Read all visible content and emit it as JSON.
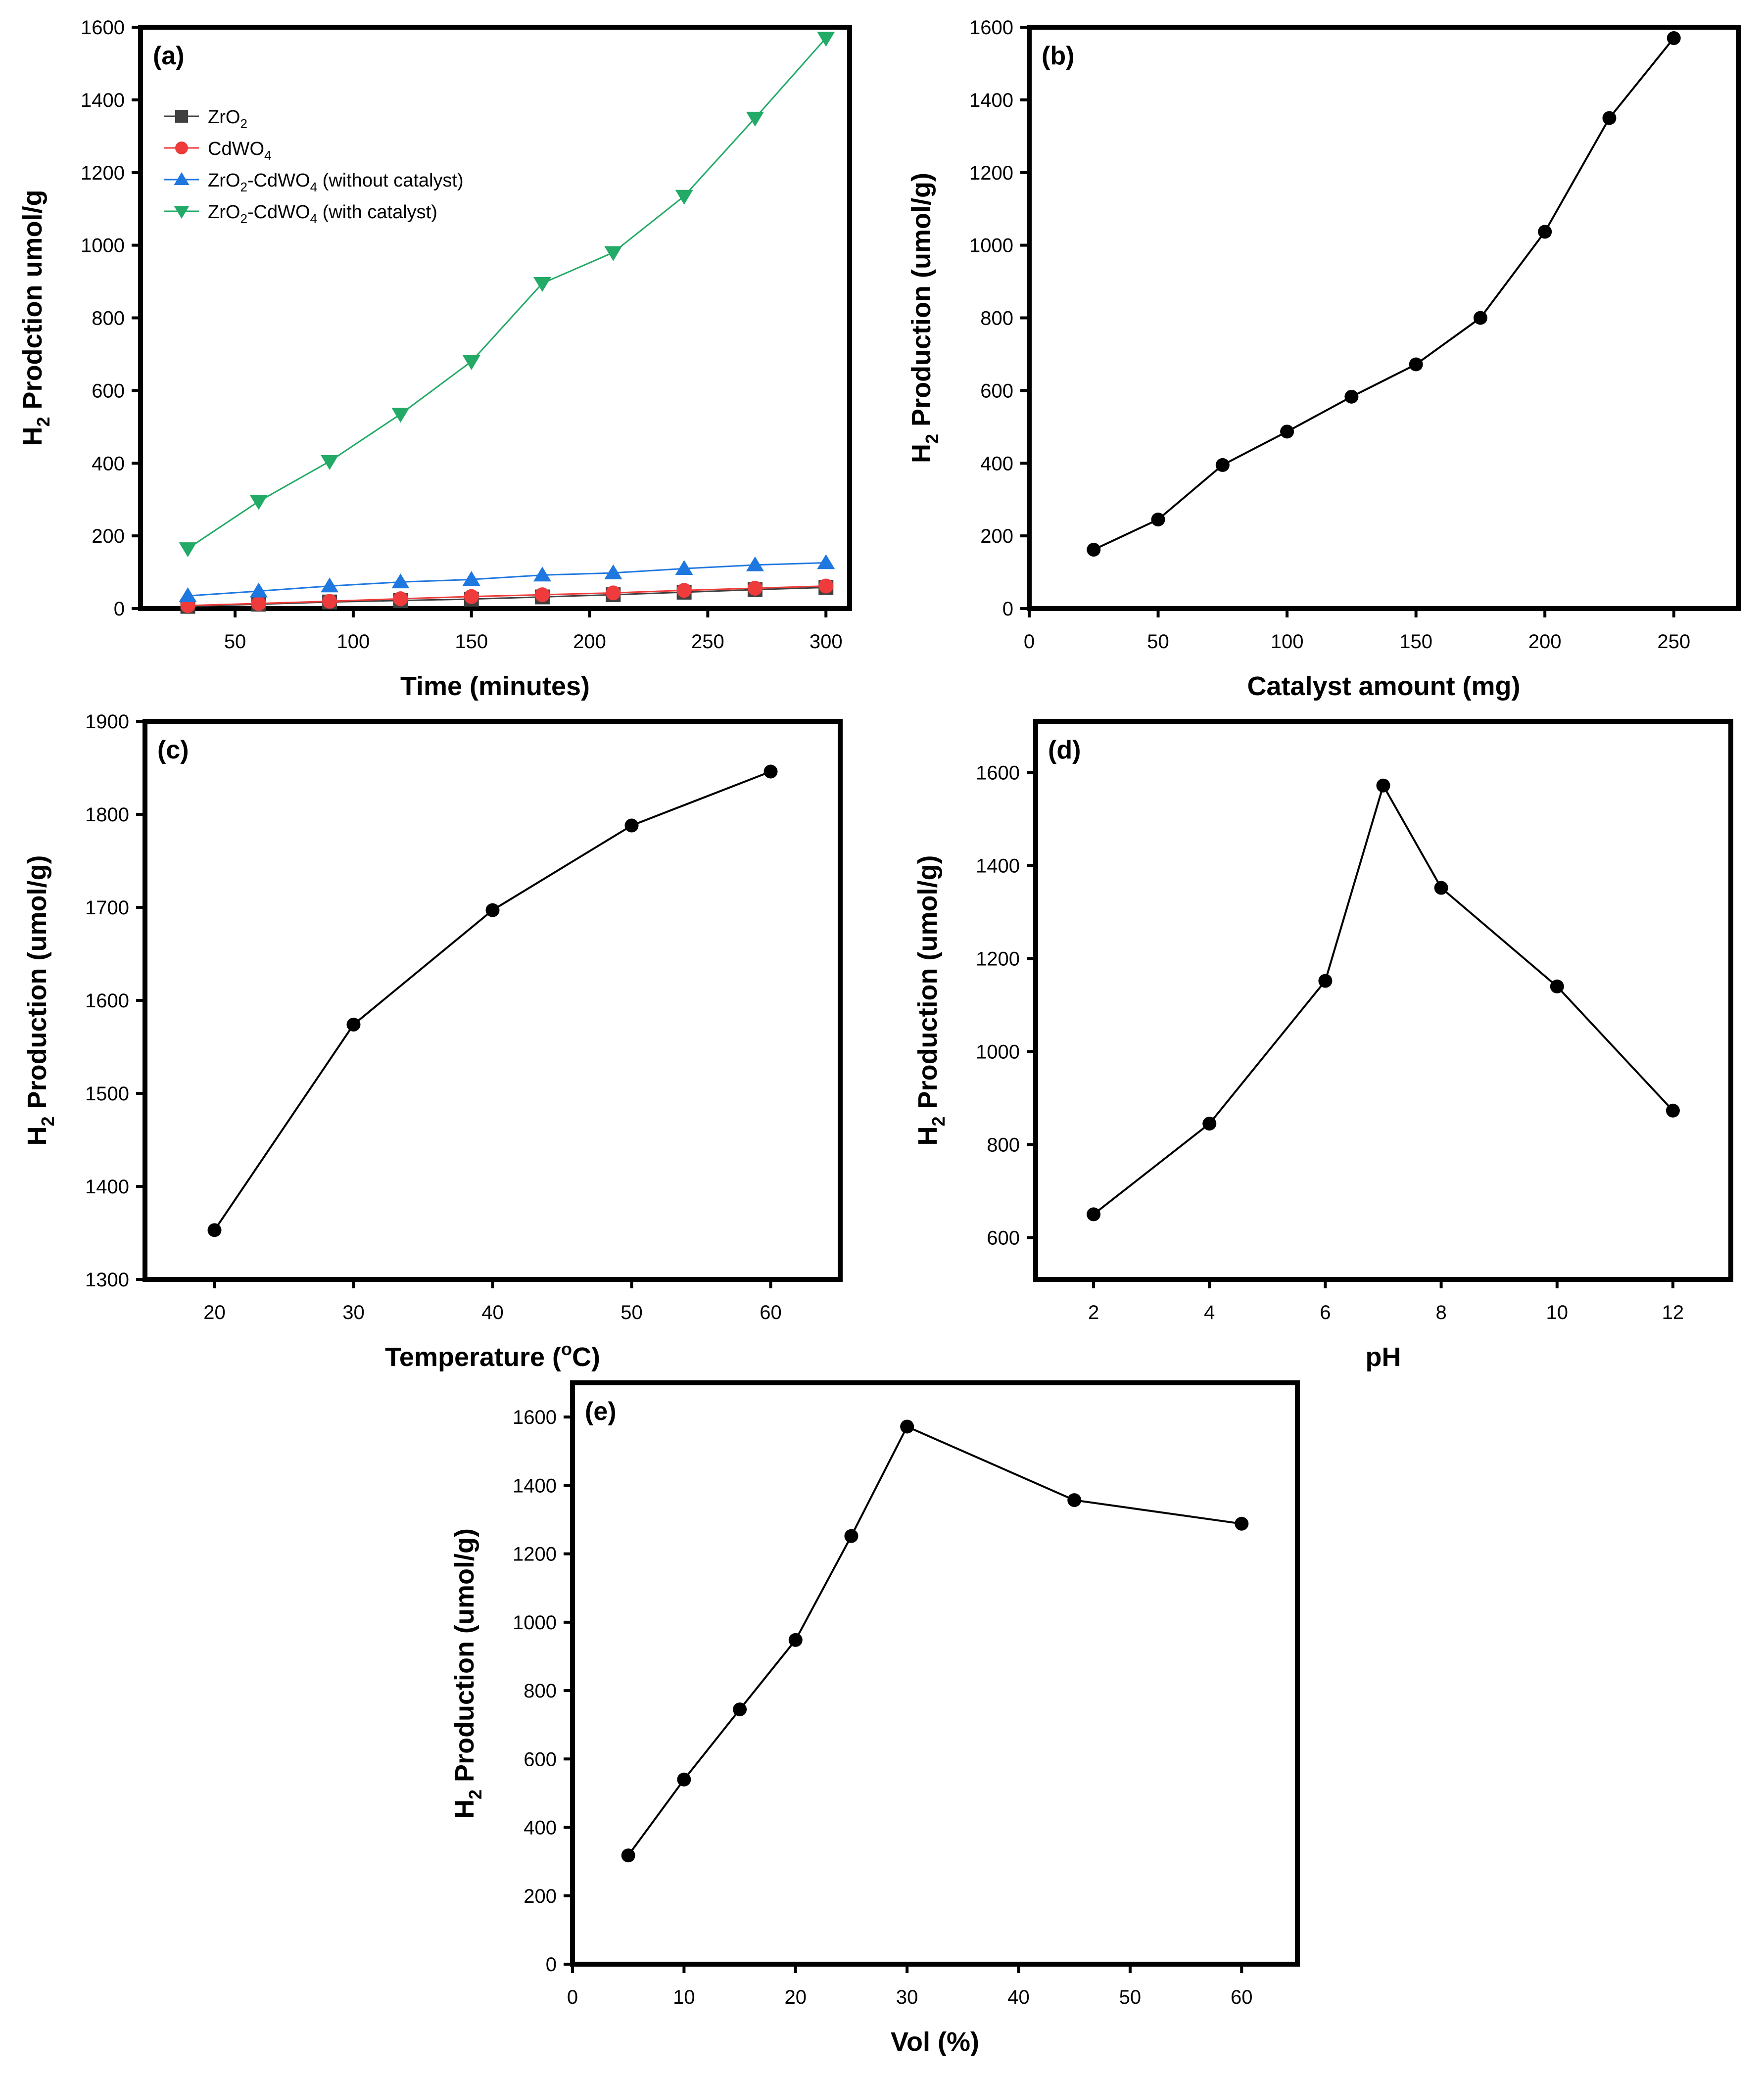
{
  "figure": {
    "background": "#ffffff"
  },
  "chart_data": [
    {
      "panel": "a",
      "label": "(a)",
      "type": "line",
      "xlabel": "Time (minutes)",
      "ylabel": "H₂ Prodction umol/g",
      "ylabel_main": "H",
      "ylabel_sub": "2",
      "ylabel_rest": " Prodction umol/g",
      "xlim": [
        10,
        310
      ],
      "ylim": [
        0,
        1600
      ],
      "xticks": [
        50,
        100,
        150,
        200,
        250,
        300
      ],
      "yticks": [
        0,
        200,
        400,
        600,
        800,
        1000,
        1200,
        1400,
        1600
      ],
      "grid": false,
      "legend": "top-left",
      "series": [
        {
          "name": "ZrO₂",
          "legend_parts": [
            [
              "ZrO",
              ""
            ],
            [
              "2",
              "sub"
            ]
          ],
          "marker": "square",
          "color": "#404040",
          "x": [
            30,
            60,
            90,
            120,
            150,
            180,
            210,
            240,
            270,
            300
          ],
          "y": [
            6,
            12,
            18,
            22,
            26,
            32,
            38,
            45,
            52,
            58
          ]
        },
        {
          "name": "CdWO₄",
          "legend_parts": [
            [
              "CdWO",
              ""
            ],
            [
              "4",
              "sub"
            ]
          ],
          "marker": "circle",
          "color": "#ef3b3b",
          "x": [
            30,
            60,
            90,
            120,
            150,
            180,
            210,
            240,
            270,
            300
          ],
          "y": [
            8,
            14,
            20,
            27,
            33,
            38,
            43,
            50,
            56,
            62
          ]
        },
        {
          "name": "ZrO₂-CdWO₄ (without catalyst)",
          "legend_parts": [
            [
              "ZrO",
              ""
            ],
            [
              "2",
              "sub"
            ],
            [
              "-CdWO",
              ""
            ],
            [
              "4",
              "sub"
            ],
            [
              " (without catalyst)",
              ""
            ]
          ],
          "marker": "triangle-up",
          "color": "#1f77e0",
          "x": [
            30,
            60,
            90,
            120,
            150,
            180,
            210,
            240,
            270,
            300
          ],
          "y": [
            35,
            48,
            62,
            73,
            80,
            92,
            98,
            110,
            120,
            126
          ]
        },
        {
          "name": "ZrO₂-CdWO₄ (with catalyst)",
          "legend_parts": [
            [
              "ZrO",
              ""
            ],
            [
              "2",
              "sub"
            ],
            [
              "-CdWO",
              ""
            ],
            [
              "4",
              "sub"
            ],
            [
              " (with catalyst)",
              ""
            ]
          ],
          "marker": "triangle-down",
          "color": "#22aa66",
          "x": [
            30,
            60,
            90,
            120,
            150,
            180,
            210,
            240,
            270,
            300
          ],
          "y": [
            165,
            295,
            405,
            535,
            680,
            895,
            980,
            1135,
            1350,
            1570
          ]
        }
      ]
    },
    {
      "panel": "b",
      "label": "(b)",
      "type": "line",
      "xlabel": "Catalyst amount (mg)",
      "ylabel": "H₂ Production (umol/g)",
      "ylabel_main": "H",
      "ylabel_sub": "2",
      "ylabel_rest": " Production (umol/g)",
      "xlim": [
        0,
        275
      ],
      "ylim": [
        0,
        1600
      ],
      "xticks": [
        0,
        50,
        100,
        150,
        200,
        250
      ],
      "yticks": [
        0,
        200,
        400,
        600,
        800,
        1000,
        1200,
        1400,
        1600
      ],
      "grid": false,
      "series": [
        {
          "name": "H₂ production",
          "marker": "circle",
          "color": "#000000",
          "x": [
            25,
            50,
            75,
            100,
            125,
            150,
            175,
            200,
            225,
            250
          ],
          "y": [
            162,
            245,
            395,
            487,
            583,
            672,
            800,
            1037,
            1350,
            1570
          ]
        }
      ]
    },
    {
      "panel": "c",
      "label": "(c)",
      "type": "line",
      "xlabel": "Temperature (°C)",
      "xlabel_main": "Temperature (",
      "xlabel_sup": "o",
      "xlabel_rest": "C)",
      "ylabel": "H₂ Production (umol/g)",
      "ylabel_main": "H",
      "ylabel_sub": "2",
      "ylabel_rest": " Production (umol/g)",
      "xlim": [
        15,
        65
      ],
      "ylim": [
        1300,
        1900
      ],
      "xticks": [
        20,
        30,
        40,
        50,
        60
      ],
      "yticks": [
        1300,
        1400,
        1500,
        1600,
        1700,
        1800,
        1900
      ],
      "grid": false,
      "series": [
        {
          "name": "H₂ production",
          "marker": "circle",
          "color": "#000000",
          "x": [
            20,
            30,
            40,
            50,
            60
          ],
          "y": [
            1353,
            1574,
            1697,
            1788,
            1846
          ]
        }
      ]
    },
    {
      "panel": "d",
      "label": "(d)",
      "type": "line",
      "xlabel": "pH",
      "ylabel": "H₂ Production (umol/g)",
      "ylabel_main": "H",
      "ylabel_sub": "2",
      "ylabel_rest": " Production (umol/g)",
      "xlim": [
        1,
        13
      ],
      "ylim": [
        510,
        1710
      ],
      "xticks": [
        2,
        4,
        6,
        8,
        10,
        12
      ],
      "yticks": [
        600,
        800,
        1000,
        1200,
        1400,
        1600
      ],
      "grid": false,
      "series": [
        {
          "name": "H₂ production",
          "marker": "circle",
          "color": "#000000",
          "x": [
            2,
            4,
            6,
            7,
            8,
            10,
            12
          ],
          "y": [
            650,
            845,
            1152,
            1572,
            1352,
            1140,
            873
          ]
        }
      ]
    },
    {
      "panel": "e",
      "label": "(e)",
      "type": "line",
      "xlabel": "Vol (%)",
      "ylabel": "H₂ Production (umol/g)",
      "ylabel_main": "H",
      "ylabel_sub": "2",
      "ylabel_rest": " Production (umol/g)",
      "xlim": [
        0,
        65
      ],
      "ylim": [
        0,
        1700
      ],
      "xticks": [
        0,
        10,
        20,
        30,
        40,
        50,
        60
      ],
      "yticks": [
        0,
        200,
        400,
        600,
        800,
        1000,
        1200,
        1400,
        1600
      ],
      "grid": false,
      "series": [
        {
          "name": "H₂ production",
          "marker": "circle",
          "color": "#000000",
          "x": [
            5,
            10,
            15,
            20,
            25,
            30,
            45,
            60
          ],
          "y": [
            318,
            540,
            745,
            948,
            1252,
            1572,
            1357,
            1288
          ]
        }
      ]
    }
  ]
}
